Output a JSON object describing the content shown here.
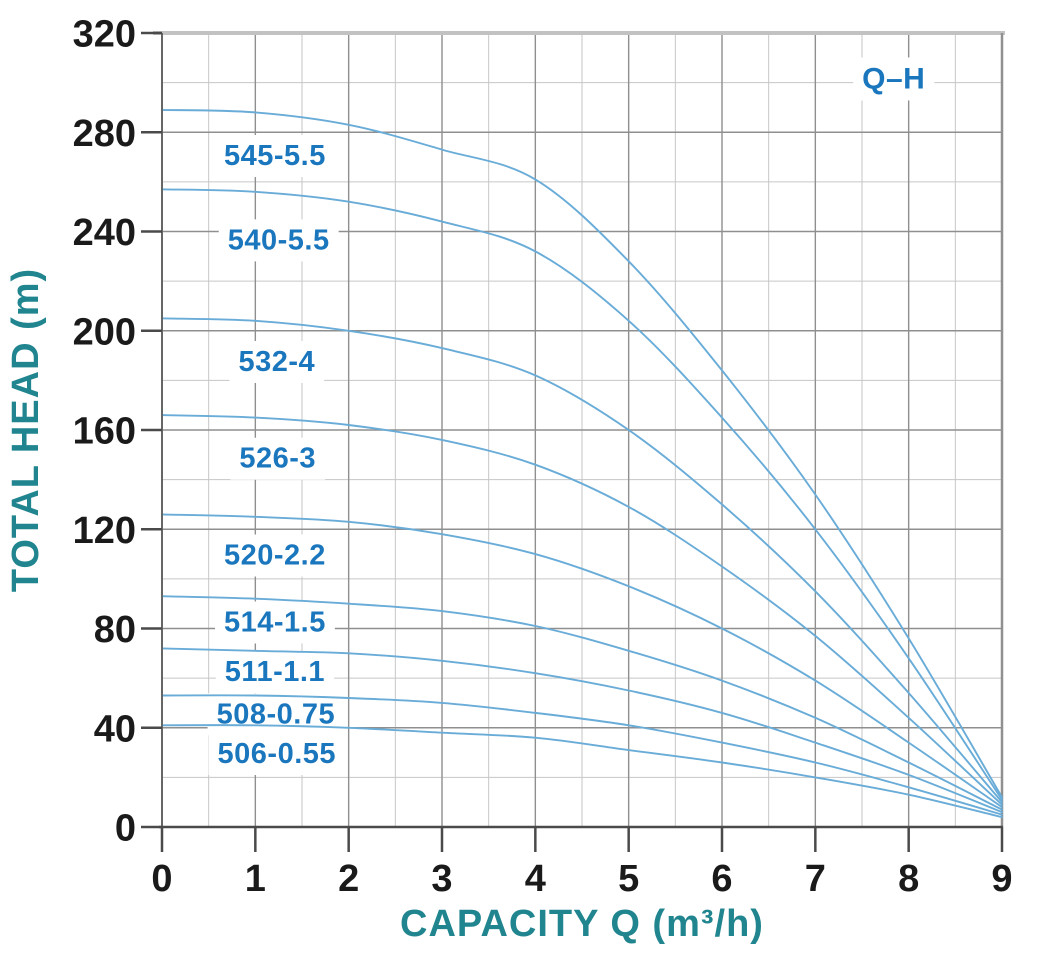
{
  "chart_data": {
    "type": "line",
    "title": "",
    "xlabel": "CAPACITY Q (m³/h)",
    "ylabel": "TOTAL HEAD (m)",
    "xlim": [
      0,
      9
    ],
    "ylim": [
      0,
      320
    ],
    "x_major_ticks": [
      0,
      1,
      2,
      3,
      4,
      5,
      6,
      7,
      8,
      9
    ],
    "y_major_ticks": [
      0,
      40,
      80,
      120,
      160,
      200,
      240,
      280,
      320
    ],
    "x_minor_step": 0.5,
    "y_minor_step": 20,
    "grid": "major and minor, both axes",
    "legend": {
      "label": "Q–H",
      "x": 7.84,
      "y": 302,
      "position": "top-right"
    },
    "series": [
      {
        "name": "545-5.5",
        "label_x": 1.21,
        "label_y": 271,
        "points": [
          [
            0,
            289
          ],
          [
            1,
            288
          ],
          [
            2,
            283
          ],
          [
            3,
            273
          ],
          [
            4,
            261
          ],
          [
            5,
            228
          ],
          [
            6,
            184
          ],
          [
            7,
            134
          ],
          [
            8,
            76
          ],
          [
            9,
            12
          ]
        ]
      },
      {
        "name": "540-5.5",
        "label_x": 1.25,
        "label_y": 237,
        "points": [
          [
            0,
            257
          ],
          [
            1,
            256
          ],
          [
            2,
            252
          ],
          [
            3,
            244
          ],
          [
            4,
            232
          ],
          [
            5,
            204
          ],
          [
            6,
            165
          ],
          [
            7,
            120
          ],
          [
            8,
            68
          ],
          [
            9,
            11
          ]
        ]
      },
      {
        "name": "532-4",
        "label_x": 1.23,
        "label_y": 188,
        "points": [
          [
            0,
            205
          ],
          [
            1,
            204
          ],
          [
            2,
            200
          ],
          [
            3,
            193
          ],
          [
            4,
            182
          ],
          [
            5,
            160
          ],
          [
            6,
            130
          ],
          [
            7,
            95
          ],
          [
            8,
            54
          ],
          [
            9,
            10
          ]
        ]
      },
      {
        "name": "526-3",
        "label_x": 1.24,
        "label_y": 149,
        "points": [
          [
            0,
            166
          ],
          [
            1,
            165
          ],
          [
            2,
            162
          ],
          [
            3,
            156
          ],
          [
            4,
            146
          ],
          [
            5,
            129
          ],
          [
            6,
            105
          ],
          [
            7,
            77
          ],
          [
            8,
            44
          ],
          [
            9,
            9
          ]
        ]
      },
      {
        "name": "520-2.2",
        "label_x": 1.21,
        "label_y": 110,
        "points": [
          [
            0,
            126
          ],
          [
            1,
            125
          ],
          [
            2,
            123
          ],
          [
            3,
            118
          ],
          [
            4,
            110
          ],
          [
            5,
            97
          ],
          [
            6,
            80
          ],
          [
            7,
            59
          ],
          [
            8,
            34
          ],
          [
            9,
            8
          ]
        ]
      },
      {
        "name": "514-1.5",
        "label_x": 1.21,
        "label_y": 83,
        "points": [
          [
            0,
            93
          ],
          [
            1,
            92
          ],
          [
            2,
            90
          ],
          [
            3,
            87
          ],
          [
            4,
            81
          ],
          [
            5,
            71
          ],
          [
            6,
            59
          ],
          [
            7,
            44
          ],
          [
            8,
            26
          ],
          [
            9,
            7
          ]
        ]
      },
      {
        "name": "511-1.1",
        "label_x": 1.21,
        "label_y": 63,
        "points": [
          [
            0,
            72
          ],
          [
            1,
            71
          ],
          [
            2,
            70
          ],
          [
            3,
            67
          ],
          [
            4,
            62
          ],
          [
            5,
            55
          ],
          [
            6,
            46
          ],
          [
            7,
            34
          ],
          [
            8,
            21
          ],
          [
            9,
            6
          ]
        ]
      },
      {
        "name": "508-0.75",
        "label_x": 1.22,
        "label_y": 46,
        "points": [
          [
            0,
            53
          ],
          [
            1,
            53
          ],
          [
            2,
            52
          ],
          [
            3,
            50
          ],
          [
            4,
            46
          ],
          [
            5,
            41
          ],
          [
            6,
            34
          ],
          [
            7,
            26
          ],
          [
            8,
            16
          ],
          [
            9,
            5
          ]
        ]
      },
      {
        "name": "506-0.55",
        "label_x": 1.23,
        "label_y": 30,
        "points": [
          [
            0,
            41
          ],
          [
            1,
            41
          ],
          [
            2,
            40
          ],
          [
            3,
            38
          ],
          [
            4,
            36
          ],
          [
            5,
            31
          ],
          [
            6,
            26
          ],
          [
            7,
            20
          ],
          [
            8,
            13
          ],
          [
            9,
            4
          ]
        ]
      }
    ]
  },
  "colors": {
    "curve": "#69acd8",
    "series_label": "#1a76bd",
    "legend_label": "#1a76bd",
    "axis_title": "#21858f",
    "tick_label": "#1a1a1a",
    "grid_major": "#8f8f8f",
    "grid_minor": "#c6c6c6",
    "axis_left": "#666666",
    "axis_bottom": "#4a4a4a",
    "tick_mark": "#4a4a4a",
    "frame_top": "#c2c2c2",
    "frame_right": "#909090",
    "background": "#ffffff",
    "label_halo": "#ffffff"
  }
}
